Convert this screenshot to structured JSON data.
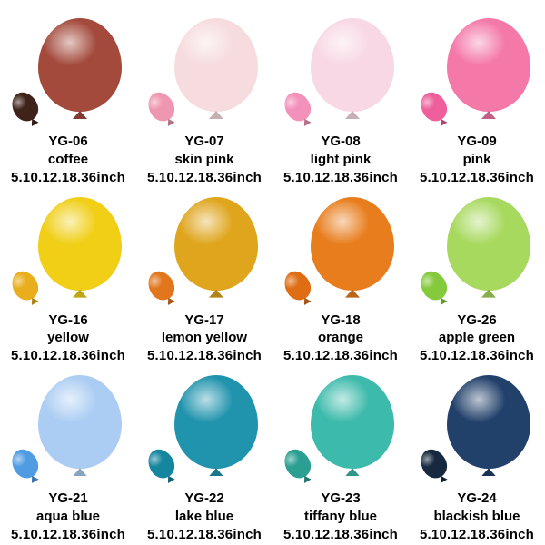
{
  "page": {
    "background": "#ffffff",
    "text_color": "#000000"
  },
  "products": [
    {
      "code": "YG-06",
      "name": "coffee",
      "sizes": "5.10.12.18.36inch",
      "colors": {
        "main": "#a34a3c",
        "small": "#3f2319"
      }
    },
    {
      "code": "YG-07",
      "name": "skin pink",
      "sizes": "5.10.12.18.36inch",
      "colors": {
        "main": "#f6dcdf",
        "small": "#ef97b0"
      }
    },
    {
      "code": "YG-08",
      "name": "light pink",
      "sizes": "5.10.12.18.36inch",
      "colors": {
        "main": "#f8d8e4",
        "small": "#f391bb"
      }
    },
    {
      "code": "YG-09",
      "name": "pink",
      "sizes": "5.10.12.18.36inch",
      "colors": {
        "main": "#f478a8",
        "small": "#ee5f9b"
      }
    },
    {
      "code": "YG-16",
      "name": "yellow",
      "sizes": "5.10.12.18.36inch",
      "colors": {
        "main": "#f0cf16",
        "small": "#e8ae1b"
      }
    },
    {
      "code": "YG-17",
      "name": "lemon yellow",
      "sizes": "5.10.12.18.36inch",
      "colors": {
        "main": "#dfa51d",
        "small": "#e2761d"
      }
    },
    {
      "code": "YG-18",
      "name": "orange",
      "sizes": "5.10.12.18.36inch",
      "colors": {
        "main": "#e87d1d",
        "small": "#df6d13"
      }
    },
    {
      "code": "YG-26",
      "name": "apple green",
      "sizes": "5.10.12.18.36inch",
      "colors": {
        "main": "#a8d95f",
        "small": "#84ca3c"
      }
    },
    {
      "code": "YG-21",
      "name": "aqua blue",
      "sizes": "5.10.12.18.36inch",
      "colors": {
        "main": "#abcdf3",
        "small": "#4f9ce2"
      }
    },
    {
      "code": "YG-22",
      "name": "lake blue",
      "sizes": "5.10.12.18.36inch",
      "colors": {
        "main": "#2093ad",
        "small": "#16869f"
      }
    },
    {
      "code": "YG-23",
      "name": "tiffany blue",
      "sizes": "5.10.12.18.36inch",
      "colors": {
        "main": "#3cbaab",
        "small": "#2ba092"
      }
    },
    {
      "code": "YG-24",
      "name": "blackish blue",
      "sizes": "5.10.12.18.36inch",
      "colors": {
        "main": "#21406a",
        "small": "#16293f"
      }
    }
  ]
}
